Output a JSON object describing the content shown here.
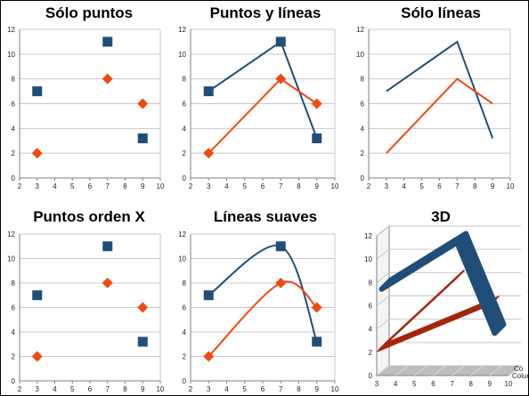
{
  "colors": {
    "blue": "#1f4e79",
    "orange": "#f04a12",
    "dark_red": "#a5250c",
    "grid": "#c8c8c8",
    "axis": "#7f7f7f"
  },
  "chart_data": [
    {
      "id": "solo-puntos",
      "title": "Sólo puntos",
      "type": "scatter",
      "mode": "markers",
      "xlim": [
        2,
        10
      ],
      "ylim": [
        0,
        12
      ],
      "xticks": [
        2,
        3,
        4,
        5,
        6,
        7,
        8,
        9,
        10
      ],
      "yticks": [
        0,
        2,
        4,
        6,
        8,
        10,
        12
      ],
      "grid": "horizontal",
      "series": [
        {
          "marker": "square",
          "color": "#1f4e79",
          "points": [
            [
              3,
              7
            ],
            [
              7,
              11
            ],
            [
              9,
              3.2
            ]
          ]
        },
        {
          "marker": "diamond",
          "color": "#f04a12",
          "points": [
            [
              3,
              2
            ],
            [
              7,
              8
            ],
            [
              9,
              6
            ]
          ]
        }
      ]
    },
    {
      "id": "puntos-y-lineas",
      "title": "Puntos y líneas",
      "type": "line",
      "mode": "lines+markers",
      "xlim": [
        2,
        10
      ],
      "ylim": [
        0,
        12
      ],
      "xticks": [
        2,
        3,
        4,
        5,
        6,
        7,
        8,
        9,
        10
      ],
      "yticks": [
        0,
        2,
        4,
        6,
        8,
        10,
        12
      ],
      "grid": "horizontal",
      "series": [
        {
          "marker": "square",
          "color": "#1f4e79",
          "points": [
            [
              3,
              7
            ],
            [
              7,
              11
            ],
            [
              9,
              3.2
            ]
          ]
        },
        {
          "marker": "diamond",
          "color": "#f04a12",
          "points": [
            [
              3,
              2
            ],
            [
              7,
              8
            ],
            [
              9,
              6
            ]
          ]
        }
      ]
    },
    {
      "id": "solo-lineas",
      "title": "Sólo líneas",
      "type": "line",
      "mode": "lines",
      "xlim": [
        2,
        10
      ],
      "ylim": [
        0,
        12
      ],
      "xticks": [
        2,
        3,
        4,
        5,
        6,
        7,
        8,
        9,
        10
      ],
      "yticks": [
        0,
        2,
        4,
        6,
        8,
        10,
        12
      ],
      "grid": "horizontal",
      "series": [
        {
          "color": "#1f4e79",
          "points": [
            [
              3,
              7
            ],
            [
              7,
              11
            ],
            [
              9,
              3.2
            ]
          ]
        },
        {
          "color": "#f04a12",
          "points": [
            [
              3,
              2
            ],
            [
              7,
              8
            ],
            [
              9,
              6
            ]
          ]
        }
      ]
    },
    {
      "id": "puntos-orden-x",
      "title": "Puntos orden X",
      "type": "scatter",
      "mode": "markers",
      "xlim": [
        2,
        10
      ],
      "ylim": [
        0,
        12
      ],
      "xticks": [
        2,
        3,
        4,
        5,
        6,
        7,
        8,
        9,
        10
      ],
      "yticks": [
        0,
        2,
        4,
        6,
        8,
        10,
        12
      ],
      "grid": "horizontal",
      "series": [
        {
          "marker": "square",
          "color": "#1f4e79",
          "points": [
            [
              3,
              7
            ],
            [
              7,
              11
            ],
            [
              9,
              3.2
            ]
          ]
        },
        {
          "marker": "diamond",
          "color": "#f04a12",
          "points": [
            [
              3,
              2
            ],
            [
              7,
              8
            ],
            [
              9,
              6
            ]
          ]
        }
      ]
    },
    {
      "id": "lineas-suaves",
      "title": "Líneas suaves",
      "type": "line",
      "mode": "smooth+markers",
      "xlim": [
        2,
        10
      ],
      "ylim": [
        0,
        12
      ],
      "xticks": [
        2,
        3,
        4,
        5,
        6,
        7,
        8,
        9,
        10
      ],
      "yticks": [
        0,
        2,
        4,
        6,
        8,
        10,
        12
      ],
      "grid": "horizontal",
      "series": [
        {
          "marker": "square",
          "color": "#1f4e79",
          "points": [
            [
              3,
              7
            ],
            [
              7,
              11
            ],
            [
              9,
              3.2
            ]
          ]
        },
        {
          "marker": "diamond",
          "color": "#f04a12",
          "points": [
            [
              3,
              2
            ],
            [
              7,
              8
            ],
            [
              9,
              6
            ]
          ]
        }
      ]
    },
    {
      "id": "3d",
      "title": "3D",
      "type": "line",
      "mode": "3d-ribbon",
      "xlim": [
        3,
        10
      ],
      "ylim": [
        0,
        12
      ],
      "xticks": [
        3,
        4,
        5,
        6,
        7,
        8,
        9,
        10
      ],
      "yticks": [
        0,
        2,
        4,
        6,
        8,
        10,
        12
      ],
      "grid": "horizontal",
      "depth_labels": [
        "Co",
        "Colur"
      ],
      "series": [
        {
          "color": "#1f4e79",
          "points": [
            [
              3,
              7
            ],
            [
              7,
              11
            ],
            [
              9,
              3.2
            ]
          ]
        },
        {
          "color": "#a5250c",
          "points": [
            [
              3,
              2
            ],
            [
              7,
              8
            ]
          ]
        },
        {
          "color": "#a5250c",
          "points": [
            [
              3,
              2
            ],
            [
              9,
              6
            ]
          ]
        }
      ]
    }
  ]
}
